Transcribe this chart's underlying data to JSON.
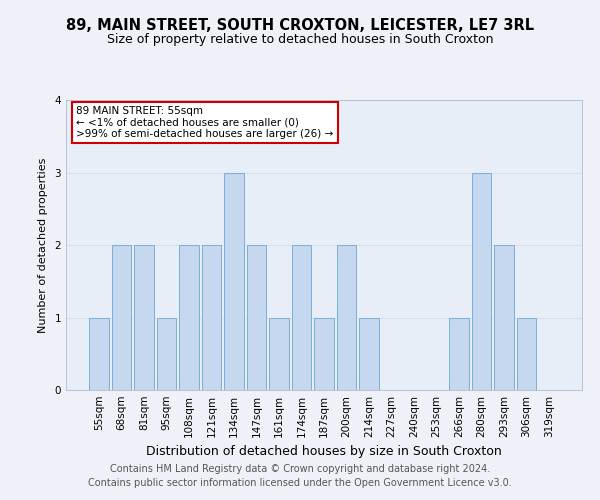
{
  "title": "89, MAIN STREET, SOUTH CROXTON, LEICESTER, LE7 3RL",
  "subtitle": "Size of property relative to detached houses in South Croxton",
  "xlabel": "Distribution of detached houses by size in South Croxton",
  "ylabel": "Number of detached properties",
  "categories": [
    "55sqm",
    "68sqm",
    "81sqm",
    "95sqm",
    "108sqm",
    "121sqm",
    "134sqm",
    "147sqm",
    "161sqm",
    "174sqm",
    "187sqm",
    "200sqm",
    "214sqm",
    "227sqm",
    "240sqm",
    "253sqm",
    "266sqm",
    "280sqm",
    "293sqm",
    "306sqm",
    "319sqm"
  ],
  "values": [
    1,
    2,
    2,
    1,
    2,
    2,
    3,
    2,
    1,
    2,
    1,
    2,
    1,
    0,
    0,
    0,
    1,
    3,
    2,
    1,
    0
  ],
  "bar_color": "#c5d8f0",
  "bar_edge_color": "#7aafd4",
  "ylim": [
    0,
    4
  ],
  "yticks": [
    0,
    1,
    2,
    3,
    4
  ],
  "annotation_title": "89 MAIN STREET: 55sqm",
  "annotation_line2": "← <1% of detached houses are smaller (0)",
  "annotation_line3": ">99% of semi-detached houses are larger (26) →",
  "annotation_box_color": "#ffffff",
  "annotation_box_edge_color": "#cc0000",
  "footer_line1": "Contains HM Land Registry data © Crown copyright and database right 2024.",
  "footer_line2": "Contains public sector information licensed under the Open Government Licence v3.0.",
  "background_color": "#eef2f8",
  "plot_background_color": "#e8eef8",
  "grid_color": "#d8dfe8",
  "title_fontsize": 10.5,
  "subtitle_fontsize": 9,
  "xlabel_fontsize": 9,
  "ylabel_fontsize": 8,
  "tick_fontsize": 7.5,
  "footer_fontsize": 7
}
